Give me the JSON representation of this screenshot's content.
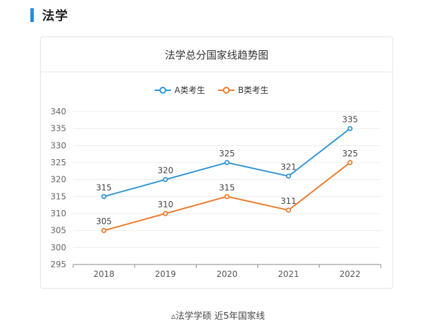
{
  "section": {
    "title": "法学"
  },
  "caption": "▵法学学硕 近5年国家线",
  "chart_data": {
    "type": "line",
    "title": "法学总分国家线趋势图",
    "categories": [
      "2018",
      "2019",
      "2020",
      "2021",
      "2022"
    ],
    "series": [
      {
        "name": "A类考生",
        "color": "#2f95d8",
        "values": [
          315,
          320,
          325,
          321,
          335
        ]
      },
      {
        "name": "B类考生",
        "color": "#ee7a2c",
        "values": [
          305,
          310,
          315,
          311,
          325
        ]
      }
    ],
    "ylim": [
      295,
      340
    ],
    "yticks": [
      295,
      300,
      305,
      310,
      315,
      320,
      325,
      330,
      335,
      340
    ],
    "grid": true,
    "legend": "top-center",
    "xlabel": "",
    "ylabel": ""
  }
}
